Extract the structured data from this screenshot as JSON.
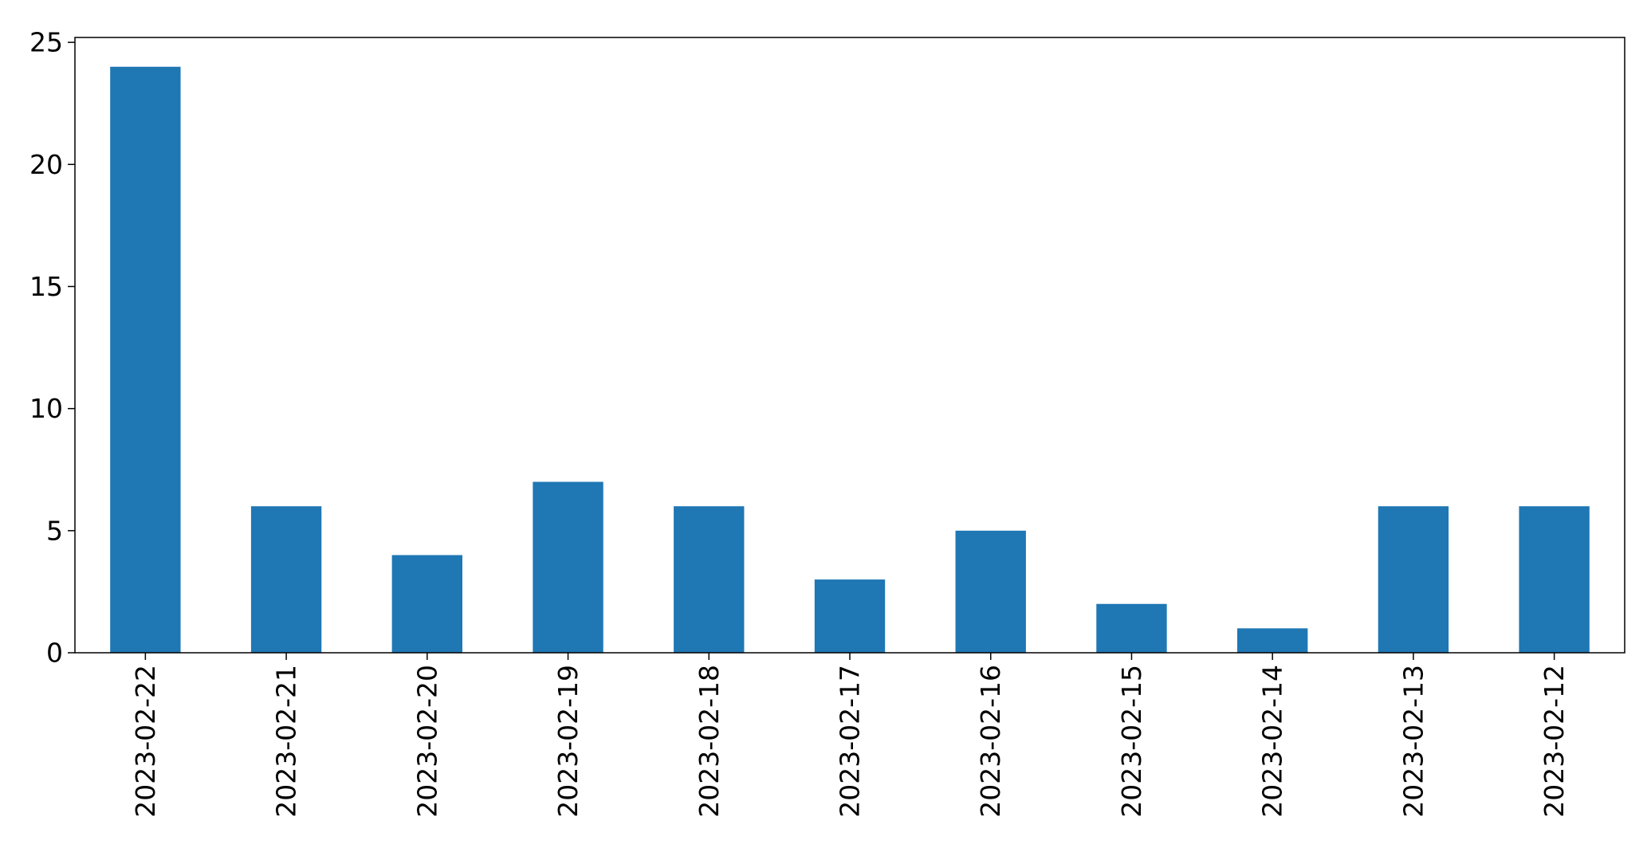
{
  "chart_data": {
    "type": "bar",
    "categories": [
      "2023-02-22",
      "2023-02-21",
      "2023-02-20",
      "2023-02-19",
      "2023-02-18",
      "2023-02-17",
      "2023-02-16",
      "2023-02-15",
      "2023-02-14",
      "2023-02-13",
      "2023-02-12"
    ],
    "values": [
      24,
      6,
      4,
      7,
      6,
      3,
      5,
      2,
      1,
      6,
      6
    ],
    "title": "",
    "xlabel": "",
    "ylabel": "",
    "ylim": [
      0,
      25.2
    ],
    "yticks": [
      0,
      5,
      10,
      15,
      20,
      25
    ],
    "grid": false,
    "bar_color": "#1f77b4",
    "x_tick_rotation": "vertical"
  }
}
